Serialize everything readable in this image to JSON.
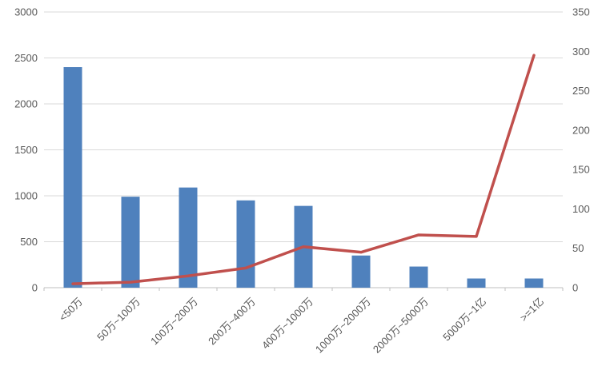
{
  "chart_data": {
    "type": "combo",
    "title": "",
    "categories": [
      "<50万",
      "50万~100万",
      "100万~200万",
      "200万~400万",
      "400万~1000万",
      "1000万~2000万",
      "2000万~5000万",
      "5000万~1亿",
      ">=1亿"
    ],
    "series": [
      {
        "type": "bar",
        "axis": "left",
        "color": "#4F81BD",
        "values": [
          2400,
          990,
          1090,
          950,
          890,
          350,
          230,
          100,
          100
        ]
      },
      {
        "type": "line",
        "axis": "right",
        "color": "#C0504D",
        "values": [
          5,
          7,
          15,
          25,
          52,
          45,
          67,
          65,
          295
        ]
      }
    ],
    "left_axis": {
      "min": 0,
      "max": 3000,
      "step": 500,
      "tick_labels": [
        "0",
        "500",
        "1000",
        "1500",
        "2000",
        "2500",
        "3000"
      ]
    },
    "right_axis": {
      "min": 0,
      "max": 350,
      "step": 50,
      "tick_labels": [
        "0",
        "50",
        "100",
        "150",
        "200",
        "250",
        "300",
        "350"
      ]
    },
    "grid": true,
    "legend": "none",
    "colors": {
      "bar": "#4F81BD",
      "line": "#C0504D",
      "grid": "#D9D9D9",
      "axis_line": "#BFBFBF",
      "tick_text": "#595959"
    },
    "x_label_rotation_deg": 45
  }
}
